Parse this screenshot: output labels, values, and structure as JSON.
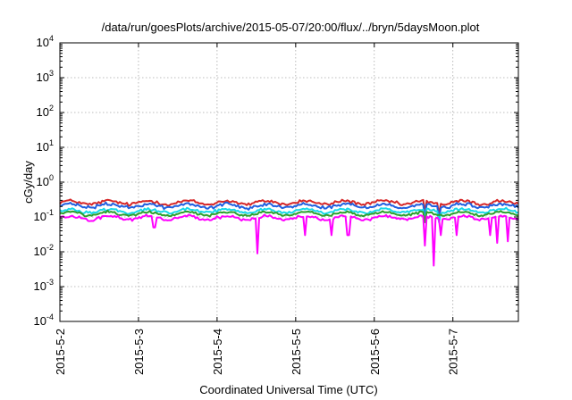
{
  "chart_data": {
    "type": "line",
    "title": "/data/run/goesPlots/archive/2015-05-07/20:00/flux/../bryn/5daysMoon.plot",
    "xlabel": "Coordinated Universal Time (UTC)",
    "ylabel": "cGy/day",
    "y_scale": "log",
    "ylim": [
      0.0001,
      10000
    ],
    "y_ticks": [
      {
        "base": "10",
        "exp": "4"
      },
      {
        "base": "10",
        "exp": "3"
      },
      {
        "base": "10",
        "exp": "2"
      },
      {
        "base": "10",
        "exp": "1"
      },
      {
        "base": "10",
        "exp": "0"
      },
      {
        "base": "10",
        "exp": "-1"
      },
      {
        "base": "10",
        "exp": "-2"
      },
      {
        "base": "10",
        "exp": "-3"
      },
      {
        "base": "10",
        "exp": "-4"
      }
    ],
    "xlim": [
      "2015-05-02 00:00",
      "2015-05-07 20:00"
    ],
    "x_ticks": [
      "2015-5-2",
      "2015-5-3",
      "2015-5-4",
      "2015-5-5",
      "2015-5-6",
      "2015-5-7"
    ],
    "grid": true,
    "series": [
      {
        "color": "#d62728",
        "base": 0.26,
        "noise": 0.16,
        "dips": [
          [
            4.65,
            0.14
          ],
          [
            4.83,
            0.12
          ]
        ]
      },
      {
        "color": "#1f5fe0",
        "base": 0.21,
        "noise": 0.16,
        "dips": [
          [
            4.65,
            0.1
          ],
          [
            4.83,
            0.09
          ]
        ]
      },
      {
        "color": "#18d8e8",
        "base": 0.15,
        "noise": 0.14,
        "dips": [
          [
            4.65,
            0.08
          ],
          [
            4.83,
            0.07
          ]
        ]
      },
      {
        "color": "#2ca02c",
        "base": 0.125,
        "noise": 0.12,
        "dips": [
          [
            4.65,
            0.07
          ]
        ]
      },
      {
        "color": "#ff00ff",
        "base": 0.095,
        "noise": 0.14,
        "dips": [
          [
            1.2,
            0.05
          ],
          [
            2.52,
            0.009
          ],
          [
            3.12,
            0.03
          ],
          [
            3.45,
            0.03
          ],
          [
            3.67,
            0.03
          ],
          [
            4.64,
            0.015
          ],
          [
            4.76,
            0.004
          ],
          [
            4.84,
            0.03
          ],
          [
            5.05,
            0.03
          ],
          [
            5.48,
            0.03
          ],
          [
            5.57,
            0.018
          ],
          [
            5.7,
            0.02
          ]
        ]
      }
    ]
  }
}
